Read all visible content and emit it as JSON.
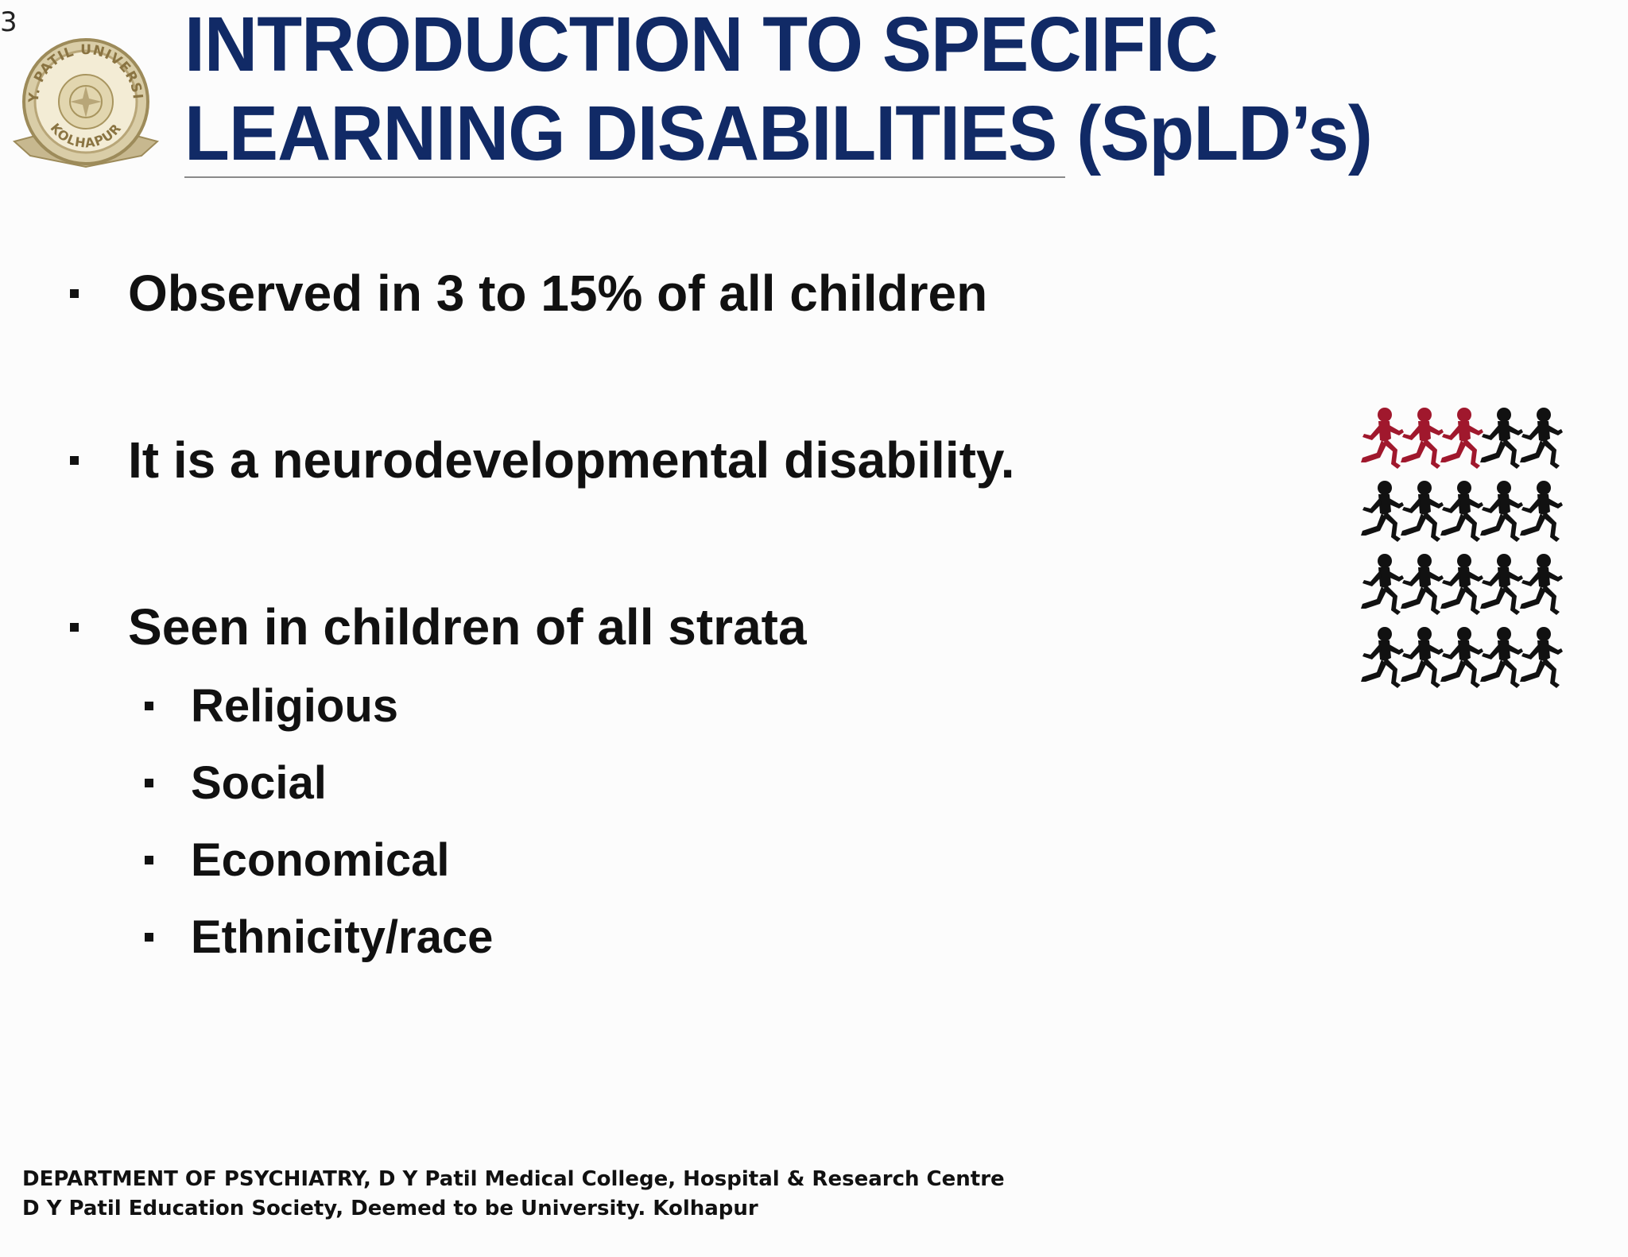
{
  "slide": {
    "number": "3",
    "title_line1": "INTRODUCTION TO SPECIFIC",
    "title_line2": "LEARNING DISABILITIES (SpLD’s)",
    "title_color": "#112a66"
  },
  "logo": {
    "name": "university-seal-logo",
    "text_top": "D.Y. PATIL UNIVERSITY",
    "text_bottom": "KOLHAPUR",
    "color": "#b8a678"
  },
  "bullets": [
    {
      "text": "Observed in 3 to 15% of all children",
      "level": 1
    },
    {
      "text": "It is a neurodevelopmental disability.",
      "level": 1
    },
    {
      "text": "Seen in children of all strata",
      "level": 1
    },
    {
      "text": "Religious",
      "level": 2
    },
    {
      "text": "Social",
      "level": 2
    },
    {
      "text": "Economical",
      "level": 2
    },
    {
      "text": "Ethnicity/race",
      "level": 2
    }
  ],
  "illustration": {
    "name": "running-children-icon",
    "highlight_count": 3,
    "total_count": 20,
    "highlight_color": "#a0182d",
    "base_color": "#111111"
  },
  "footer": {
    "line1": "DEPARTMENT OF PSYCHIATRY, D Y Patil Medical College, Hospital & Research Centre",
    "line2": "D Y Patil Education Society, Deemed to be University. Kolhapur"
  }
}
